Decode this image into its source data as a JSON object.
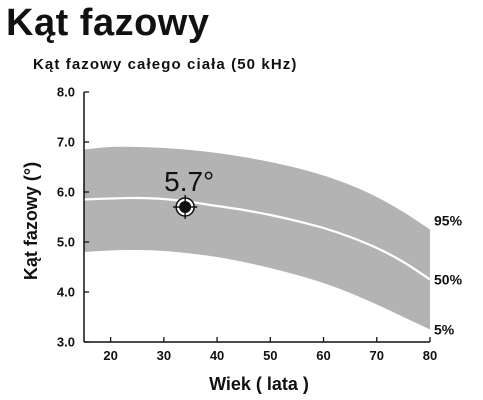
{
  "title": "Kąt fazowy",
  "subtitle": "Kąt fazowy całego ciała (50 kHz)",
  "chart_data": {
    "type": "area",
    "xlabel": "Wiek ( lata )",
    "ylabel": "Kąt fazowy (°)",
    "xlim": [
      15,
      80
    ],
    "ylim": [
      3.0,
      8.0
    ],
    "x_ticks": [
      "20",
      "30",
      "40",
      "50",
      "60",
      "70",
      "80"
    ],
    "y_ticks": [
      "3.0",
      "4.0",
      "5.0",
      "6.0",
      "7.0",
      "8.0"
    ],
    "x": [
      15,
      20,
      25,
      30,
      35,
      40,
      45,
      50,
      55,
      60,
      65,
      70,
      75,
      80
    ],
    "series": [
      {
        "name": "95%",
        "values": [
          6.85,
          6.9,
          6.9,
          6.88,
          6.84,
          6.78,
          6.7,
          6.6,
          6.48,
          6.33,
          6.14,
          5.9,
          5.6,
          5.25
        ]
      },
      {
        "name": "50%",
        "values": [
          5.85,
          5.87,
          5.88,
          5.86,
          5.8,
          5.72,
          5.64,
          5.54,
          5.42,
          5.28,
          5.1,
          4.88,
          4.6,
          4.25
        ]
      },
      {
        "name": "5%",
        "values": [
          4.8,
          4.83,
          4.84,
          4.82,
          4.77,
          4.7,
          4.6,
          4.48,
          4.34,
          4.18,
          3.98,
          3.75,
          3.5,
          3.25
        ]
      }
    ],
    "point": {
      "x": 34,
      "y": 5.7,
      "label": "5.7°"
    },
    "colors": {
      "band": "#b3b3b3",
      "median": "#ffffff",
      "marker": "#111111"
    }
  }
}
